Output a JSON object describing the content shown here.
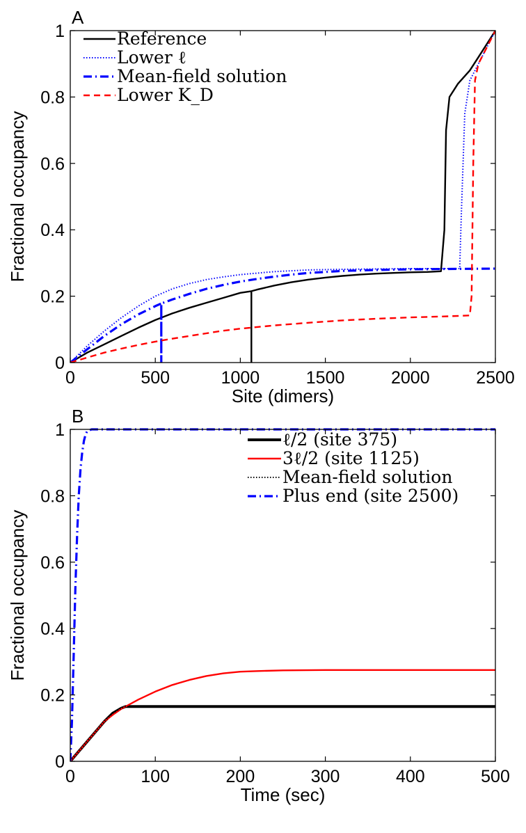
{
  "chart_data": [
    {
      "panel": "A",
      "type": "line",
      "xlabel": "Site (dimers)",
      "ylabel": "Fractional occupancy",
      "xlim": [
        0,
        2500
      ],
      "ylim": [
        0,
        1
      ],
      "xticks": [
        "0",
        "500",
        "1000",
        "1500",
        "2000",
        "2500"
      ],
      "yticks": [
        "0",
        "0.2",
        "0.4",
        "0.6",
        "0.8",
        "1"
      ],
      "legend_position": "top-left",
      "series": [
        {
          "name": "Reference",
          "color": "#000000",
          "style": "solid",
          "x": [
            0,
            100,
            200,
            300,
            400,
            500,
            600,
            700,
            800,
            900,
            1000,
            1065,
            1065,
            1065,
            1100,
            1200,
            1300,
            1400,
            1500,
            1600,
            1700,
            1800,
            1900,
            2000,
            2100,
            2180,
            2200,
            2210,
            2230,
            2280,
            2350,
            2400,
            2450,
            2500
          ],
          "y": [
            0,
            0.03,
            0.055,
            0.08,
            0.105,
            0.128,
            0.148,
            0.165,
            0.18,
            0.195,
            0.21,
            0.215,
            0,
            0.215,
            0.22,
            0.232,
            0.242,
            0.25,
            0.256,
            0.261,
            0.265,
            0.268,
            0.27,
            0.272,
            0.273,
            0.275,
            0.4,
            0.7,
            0.8,
            0.84,
            0.88,
            0.92,
            0.96,
            1.0
          ]
        },
        {
          "name": "Lower ℓ",
          "color": "#0000ff",
          "style": "dotted",
          "x": [
            0,
            100,
            200,
            300,
            400,
            500,
            600,
            700,
            800,
            900,
            1000,
            1200,
            1400,
            1600,
            1800,
            2000,
            2200,
            2290,
            2300,
            2320,
            2350,
            2400,
            2450,
            2500
          ],
          "y": [
            0,
            0.05,
            0.095,
            0.135,
            0.17,
            0.2,
            0.222,
            0.238,
            0.25,
            0.258,
            0.265,
            0.274,
            0.279,
            0.281,
            0.282,
            0.283,
            0.283,
            0.283,
            0.45,
            0.75,
            0.85,
            0.9,
            0.95,
            1.0
          ]
        },
        {
          "name": "Mean-field solution",
          "color": "#0000ff",
          "style": "dashdot",
          "x": [
            0,
            100,
            200,
            300,
            400,
            500,
            535,
            535,
            535,
            600,
            700,
            800,
            900,
            1000,
            1100,
            1200,
            1300,
            1400,
            1500,
            1600,
            1800,
            2000,
            2200,
            2500
          ],
          "y": [
            0,
            0.04,
            0.08,
            0.115,
            0.145,
            0.17,
            0.178,
            0,
            0.178,
            0.19,
            0.207,
            0.222,
            0.234,
            0.244,
            0.252,
            0.259,
            0.265,
            0.27,
            0.273,
            0.276,
            0.279,
            0.281,
            0.282,
            0.283
          ]
        },
        {
          "name": "Lower K_D",
          "color": "#ff0000",
          "style": "dashed",
          "x": [
            0,
            100,
            200,
            300,
            400,
            500,
            600,
            700,
            800,
            900,
            1000,
            1200,
            1400,
            1600,
            1800,
            2000,
            2200,
            2350,
            2360,
            2370,
            2380,
            2400,
            2450,
            2500
          ],
          "y": [
            0,
            0.015,
            0.03,
            0.042,
            0.053,
            0.063,
            0.072,
            0.08,
            0.088,
            0.096,
            0.102,
            0.112,
            0.12,
            0.127,
            0.132,
            0.136,
            0.139,
            0.142,
            0.2,
            0.6,
            0.85,
            0.9,
            0.95,
            1.0
          ]
        }
      ]
    },
    {
      "panel": "B",
      "type": "line",
      "xlabel": "Time (sec)",
      "ylabel": "Fractional occupancy",
      "xlim": [
        0,
        500
      ],
      "ylim": [
        0,
        1
      ],
      "xticks": [
        "0",
        "100",
        "200",
        "300",
        "400",
        "500"
      ],
      "yticks": [
        "0",
        "0.2",
        "0.4",
        "0.6",
        "0.8",
        "1"
      ],
      "legend_position": "top-right",
      "series": [
        {
          "name": "ℓ/2 (site 375)",
          "color": "#000000",
          "style": "solid",
          "x": [
            0,
            10,
            20,
            30,
            40,
            50,
            60,
            65,
            70,
            100,
            150,
            200,
            250,
            300,
            350,
            400,
            450,
            500
          ],
          "y": [
            0,
            0.03,
            0.06,
            0.09,
            0.12,
            0.145,
            0.16,
            0.165,
            0.165,
            0.165,
            0.165,
            0.165,
            0.165,
            0.165,
            0.165,
            0.165,
            0.165,
            0.165
          ]
        },
        {
          "name": "3ℓ/2 (site 1125)",
          "color": "#ff0000",
          "style": "solid",
          "x": [
            0,
            10,
            20,
            30,
            40,
            50,
            60,
            70,
            80,
            100,
            120,
            140,
            160,
            180,
            200,
            220,
            250,
            300,
            350,
            400,
            450,
            500
          ],
          "y": [
            0,
            0.03,
            0.06,
            0.09,
            0.12,
            0.14,
            0.158,
            0.172,
            0.186,
            0.21,
            0.23,
            0.245,
            0.257,
            0.265,
            0.27,
            0.272,
            0.274,
            0.275,
            0.275,
            0.275,
            0.275,
            0.275
          ]
        },
        {
          "name": "Mean-field solution",
          "color": "#000000",
          "style": "dotted",
          "x": [
            0,
            10,
            20,
            30,
            40,
            50,
            60,
            65,
            70,
            100,
            150,
            200,
            250,
            300,
            350,
            400,
            450,
            500
          ],
          "y": [
            0,
            0.03,
            0.06,
            0.09,
            0.12,
            0.145,
            0.16,
            0.165,
            0.165,
            0.165,
            0.165,
            0.165,
            0.165,
            0.165,
            0.165,
            0.165,
            0.165,
            0.165
          ]
        },
        {
          "name": "Plus end (site 2500)",
          "color": "#0000ff",
          "style": "dashdot",
          "x": [
            0,
            2,
            4,
            6,
            8,
            10,
            12,
            14,
            16,
            18,
            20,
            25,
            30,
            50,
            100,
            200,
            300,
            400,
            500
          ],
          "y": [
            0,
            0.12,
            0.32,
            0.52,
            0.68,
            0.8,
            0.88,
            0.93,
            0.965,
            0.985,
            0.995,
            1.0,
            1.0,
            1.0,
            1.0,
            1.0,
            1.0,
            1.0,
            1.0
          ]
        }
      ]
    }
  ]
}
